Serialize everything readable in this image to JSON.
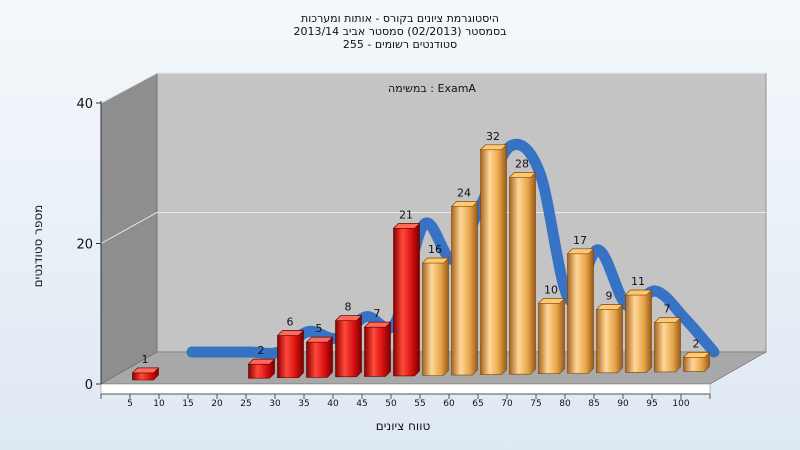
{
  "chart_data": {
    "type": "bar",
    "title_lines": [
      "היסטוגרמת ציונים בקורס - אותות ומערכות",
      "בסמסטר  (02/2013)  סמסטר אביב 2013/14",
      "255 - סטודנטים רשומים"
    ],
    "annotation": "במשימה : ExamA",
    "xlabel": "טווח ציונים",
    "ylabel": "מספר סטודנטים",
    "categories": [
      "5",
      "10",
      "15",
      "20",
      "25",
      "30",
      "35",
      "40",
      "45",
      "50",
      "55",
      "60",
      "65",
      "70",
      "75",
      "80",
      "85",
      "90",
      "95",
      "100"
    ],
    "values": [
      1,
      0,
      0,
      0,
      2,
      6,
      5,
      8,
      7,
      21,
      16,
      24,
      32,
      28,
      10,
      17,
      9,
      11,
      7,
      2
    ],
    "fail_threshold": 55,
    "ylim": [
      0,
      40
    ],
    "y_ticks": [
      0,
      20,
      40
    ],
    "grid": true,
    "colors": {
      "fail": "#e01010",
      "pass": "#e8a64a",
      "curve": "#2f6fc4",
      "plot_back": "#c4c4c4",
      "plot_side": "#8e8e8e",
      "plot_floor": "#a8a8a8"
    }
  }
}
